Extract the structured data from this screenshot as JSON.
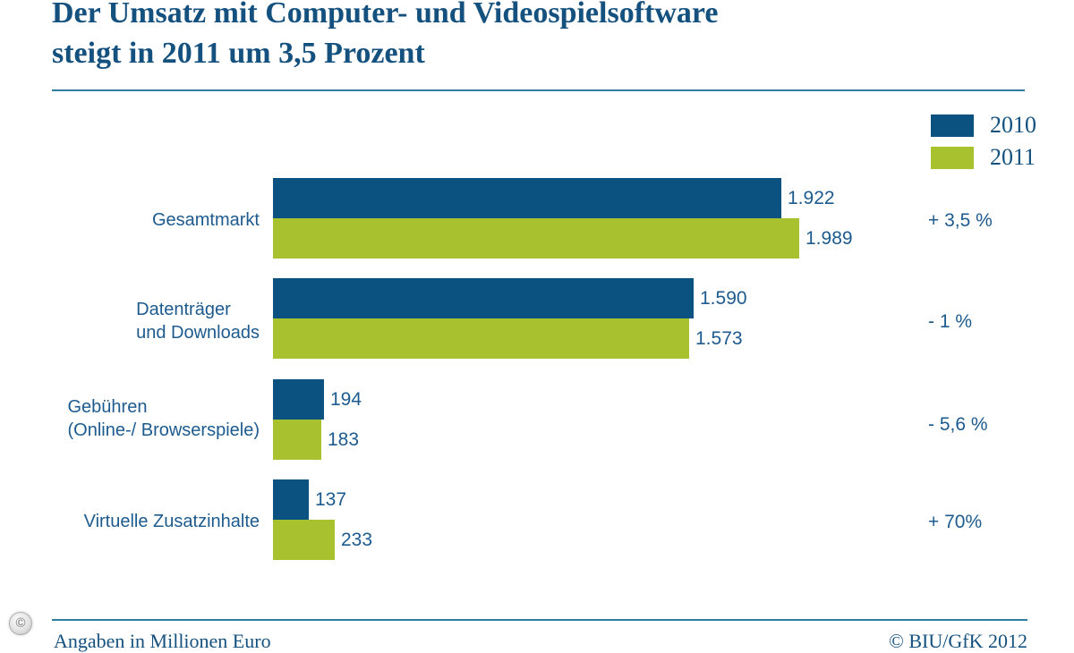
{
  "title": {
    "line1": "Der Umsatz mit Computer- und Videospielsoftware",
    "line2": "steigt in 2011 um 3,5 Prozent"
  },
  "legend": [
    {
      "label": "2010",
      "color": "#0c5280"
    },
    {
      "label": "2011",
      "color": "#a8c12f"
    }
  ],
  "chart_data": {
    "type": "bar",
    "orientation": "horizontal",
    "title": "Der Umsatz mit Computer- und Videospielsoftware steigt in 2011 um 3,5 Prozent",
    "categories": [
      "Gesamtmarkt",
      "Datenträger und Downloads",
      "Gebühren (Online-/ Browserspiele)",
      "Virtuelle Zusatzinhalte"
    ],
    "category_lines": [
      [
        "Gesamtmarkt"
      ],
      [
        "Datenträger",
        "und Downloads"
      ],
      [
        "Gebühren",
        "(Online-/ Browserspiele)"
      ],
      [
        "Virtuelle Zusatzinhalte"
      ]
    ],
    "series": [
      {
        "name": "2010",
        "values": [
          1922,
          1590,
          194,
          137
        ]
      },
      {
        "name": "2011",
        "values": [
          1989,
          1573,
          183,
          233
        ]
      }
    ],
    "display_values": [
      [
        "1.922",
        "1.590",
        "194",
        "137"
      ],
      [
        "1.989",
        "1.573",
        "183",
        "233"
      ]
    ],
    "change_labels": [
      "+ 3,5 %",
      "- 1 %",
      "- 5,6 %",
      "+ 70%"
    ],
    "xlim": [
      0,
      2000
    ],
    "grid": false,
    "legend_position": "top-right"
  },
  "footer": {
    "copyright_badge": "©",
    "left": "Angaben in Millionen Euro",
    "right": "© BIU/GfK 2012"
  }
}
